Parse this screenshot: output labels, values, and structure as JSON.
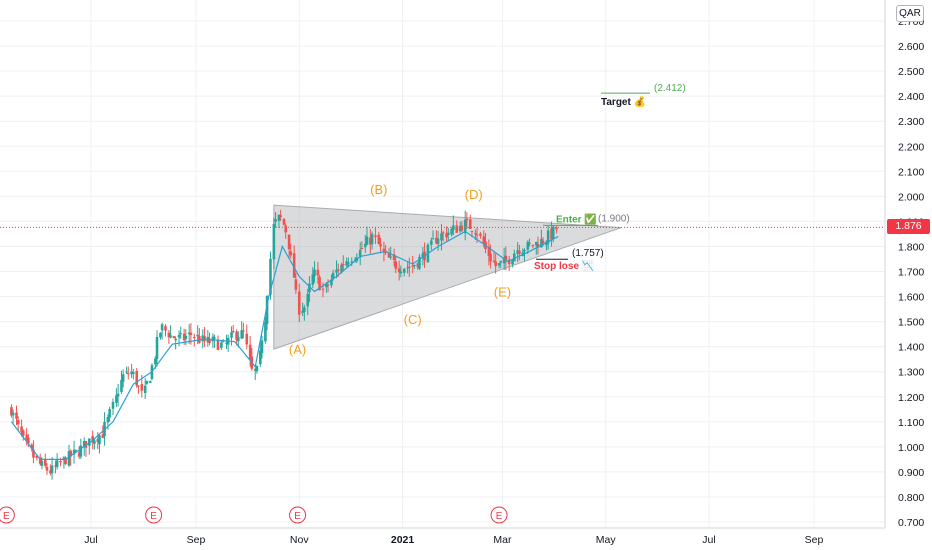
{
  "currency": "QAR",
  "last_price": "1.876",
  "colors": {
    "up": "#26a69a",
    "down": "#ef5350",
    "ma": "#2a9fd6",
    "wave": "#f29e1f",
    "triangle": "#c8c9cc",
    "target": "#4caf50",
    "stop": "#f23645",
    "grid": "#eef0f3",
    "earnings": "#f23645"
  },
  "chart_data": {
    "type": "candlestick",
    "symbol_currency": "QAR",
    "y_axis": {
      "min": 0.7,
      "max": 2.7,
      "ticks": [
        "0.700",
        "0.800",
        "0.900",
        "1.000",
        "1.100",
        "1.200",
        "1.300",
        "1.400",
        "1.500",
        "1.600",
        "1.700",
        "1.800",
        "1.900",
        "2.000",
        "2.100",
        "2.200",
        "2.300",
        "2.400",
        "2.500",
        "2.600",
        "2.700"
      ]
    },
    "x_axis": {
      "ticks": [
        {
          "label": "Jul",
          "date": "2020-07-01"
        },
        {
          "label": "Sep",
          "date": "2020-09-01"
        },
        {
          "label": "Nov",
          "date": "2020-11-01"
        },
        {
          "label": "2021",
          "date": "2021-01-01",
          "bold": true
        },
        {
          "label": "Mar",
          "date": "2021-03-01"
        },
        {
          "label": "May",
          "date": "2021-05-01"
        },
        {
          "label": "Jul",
          "date": "2021-07-01"
        },
        {
          "label": "Sep",
          "date": "2021-09-01"
        }
      ]
    },
    "series_path": [
      [
        "2020-05-15",
        1.15
      ],
      [
        "2020-05-23",
        1.02
      ],
      [
        "2020-06-01",
        0.93
      ],
      [
        "2020-06-08",
        0.9
      ],
      [
        "2020-06-16",
        0.95
      ],
      [
        "2020-06-24",
        0.98
      ],
      [
        "2020-07-01",
        1.03
      ],
      [
        "2020-07-08",
        1.05
      ],
      [
        "2020-07-14",
        1.15
      ],
      [
        "2020-07-20",
        1.28
      ],
      [
        "2020-07-26",
        1.3
      ],
      [
        "2020-08-01",
        1.2
      ],
      [
        "2020-08-06",
        1.3
      ],
      [
        "2020-08-12",
        1.48
      ],
      [
        "2020-08-18",
        1.44
      ],
      [
        "2020-08-24",
        1.43
      ],
      [
        "2020-08-30",
        1.45
      ],
      [
        "2020-09-06",
        1.42
      ],
      [
        "2020-09-12",
        1.42
      ],
      [
        "2020-09-18",
        1.4
      ],
      [
        "2020-09-24",
        1.45
      ],
      [
        "2020-09-30",
        1.45
      ],
      [
        "2020-10-04",
        1.3
      ],
      [
        "2020-10-08",
        1.3
      ],
      [
        "2020-10-13",
        1.55
      ],
      [
        "2020-10-17",
        1.88
      ],
      [
        "2020-10-21",
        1.92
      ],
      [
        "2020-10-25",
        1.86
      ],
      [
        "2020-10-29",
        1.7
      ],
      [
        "2020-11-01",
        1.55
      ],
      [
        "2020-11-05",
        1.56
      ],
      [
        "2020-11-10",
        1.7
      ],
      [
        "2020-11-16",
        1.62
      ],
      [
        "2020-11-23",
        1.7
      ],
      [
        "2020-11-30",
        1.75
      ],
      [
        "2020-12-07",
        1.78
      ],
      [
        "2020-12-15",
        1.84
      ],
      [
        "2020-12-22",
        1.76
      ],
      [
        "2020-12-30",
        1.72
      ],
      [
        "2021-01-07",
        1.72
      ],
      [
        "2021-01-15",
        1.77
      ],
      [
        "2021-01-22",
        1.84
      ],
      [
        "2021-01-30",
        1.86
      ],
      [
        "2021-02-07",
        1.89
      ],
      [
        "2021-02-14",
        1.87
      ],
      [
        "2021-02-20",
        1.78
      ],
      [
        "2021-02-26",
        1.72
      ],
      [
        "2021-03-04",
        1.74
      ],
      [
        "2021-03-10",
        1.79
      ],
      [
        "2021-03-17",
        1.8
      ],
      [
        "2021-03-24",
        1.82
      ],
      [
        "2021-03-31",
        1.85
      ],
      [
        "2021-04-03",
        1.876
      ]
    ],
    "moving_average": [
      [
        "2020-05-15",
        1.1
      ],
      [
        "2020-06-01",
        0.95
      ],
      [
        "2020-06-16",
        0.95
      ],
      [
        "2020-07-01",
        1.02
      ],
      [
        "2020-07-14",
        1.1
      ],
      [
        "2020-07-26",
        1.25
      ],
      [
        "2020-08-06",
        1.3
      ],
      [
        "2020-08-18",
        1.41
      ],
      [
        "2020-09-06",
        1.43
      ],
      [
        "2020-09-24",
        1.42
      ],
      [
        "2020-10-06",
        1.32
      ],
      [
        "2020-10-14",
        1.6
      ],
      [
        "2020-10-22",
        1.8
      ],
      [
        "2020-11-01",
        1.68
      ],
      [
        "2020-11-10",
        1.62
      ],
      [
        "2020-11-23",
        1.68
      ],
      [
        "2020-12-07",
        1.76
      ],
      [
        "2020-12-22",
        1.78
      ],
      [
        "2021-01-07",
        1.73
      ],
      [
        "2021-01-22",
        1.8
      ],
      [
        "2021-02-07",
        1.86
      ],
      [
        "2021-02-20",
        1.8
      ],
      [
        "2021-03-04",
        1.74
      ],
      [
        "2021-03-17",
        1.78
      ],
      [
        "2021-04-03",
        1.84
      ]
    ],
    "triangle": {
      "upper_start": [
        "2020-10-17",
        1.965
      ],
      "apex": [
        "2021-05-10",
        1.875
      ],
      "lower_start": [
        "2020-10-17",
        1.39
      ]
    },
    "wave_labels": [
      {
        "label": "(A)",
        "date": "2020-10-31",
        "price": 1.37
      },
      {
        "label": "(B)",
        "date": "2020-12-18",
        "price": 2.01
      },
      {
        "label": "(C)",
        "date": "2021-01-07",
        "price": 1.49
      },
      {
        "label": "(D)",
        "date": "2021-02-12",
        "price": 1.99
      },
      {
        "label": "(E)",
        "date": "2021-03-01",
        "price": 1.6
      }
    ],
    "annotations": {
      "target": {
        "label": "Target 💰",
        "value": "(2.412)",
        "price": 2.412
      },
      "enter": {
        "label": "Enter ✅",
        "value": "(1.900)",
        "price": 1.9
      },
      "stop_loss": {
        "label": "Stop lose 📉",
        "value": "(1.757)",
        "price": 1.757
      }
    },
    "earnings_markers": [
      {
        "label": "E",
        "date": "2020-05-12"
      },
      {
        "label": "E",
        "date": "2020-08-07"
      },
      {
        "label": "E",
        "date": "2020-10-31"
      },
      {
        "label": "E",
        "date": "2021-02-27"
      }
    ]
  }
}
